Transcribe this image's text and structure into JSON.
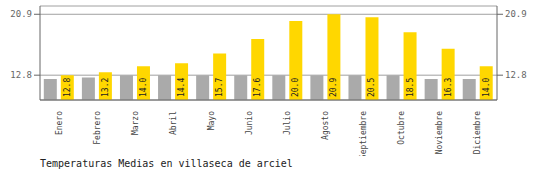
{
  "chart_data": {
    "type": "bar",
    "title": "Temperaturas Medias en villaseca de arciel",
    "categories": [
      "Enero",
      "Febrero",
      "Marzo",
      "Abril",
      "Mayo",
      "Junio",
      "Julio",
      "Agosto",
      "Septiembre",
      "Octubre",
      "Noviembre",
      "Diciembre"
    ],
    "series": [
      {
        "color": "#AAAAAA",
        "values": [
          12.3,
          12.5,
          12.8,
          12.8,
          12.8,
          12.8,
          12.8,
          12.8,
          12.8,
          12.8,
          12.3,
          12.3
        ]
      },
      {
        "color": "#FFD700",
        "values": [
          12.8,
          13.2,
          14.0,
          14.4,
          15.7,
          17.6,
          20.0,
          20.9,
          20.5,
          18.5,
          16.3,
          14.0
        ],
        "data_labels": true,
        "value_labels": [
          "12.8",
          "13.2",
          "14.0",
          "14.4",
          "15.7",
          "17.6",
          "20.0",
          "20.9",
          "20.5",
          "18.5",
          "16.3",
          "14.0"
        ]
      }
    ],
    "ylim": [
      9.5,
      22.0
    ],
    "yticks": [
      12.8,
      20.9
    ],
    "grid": true
  }
}
